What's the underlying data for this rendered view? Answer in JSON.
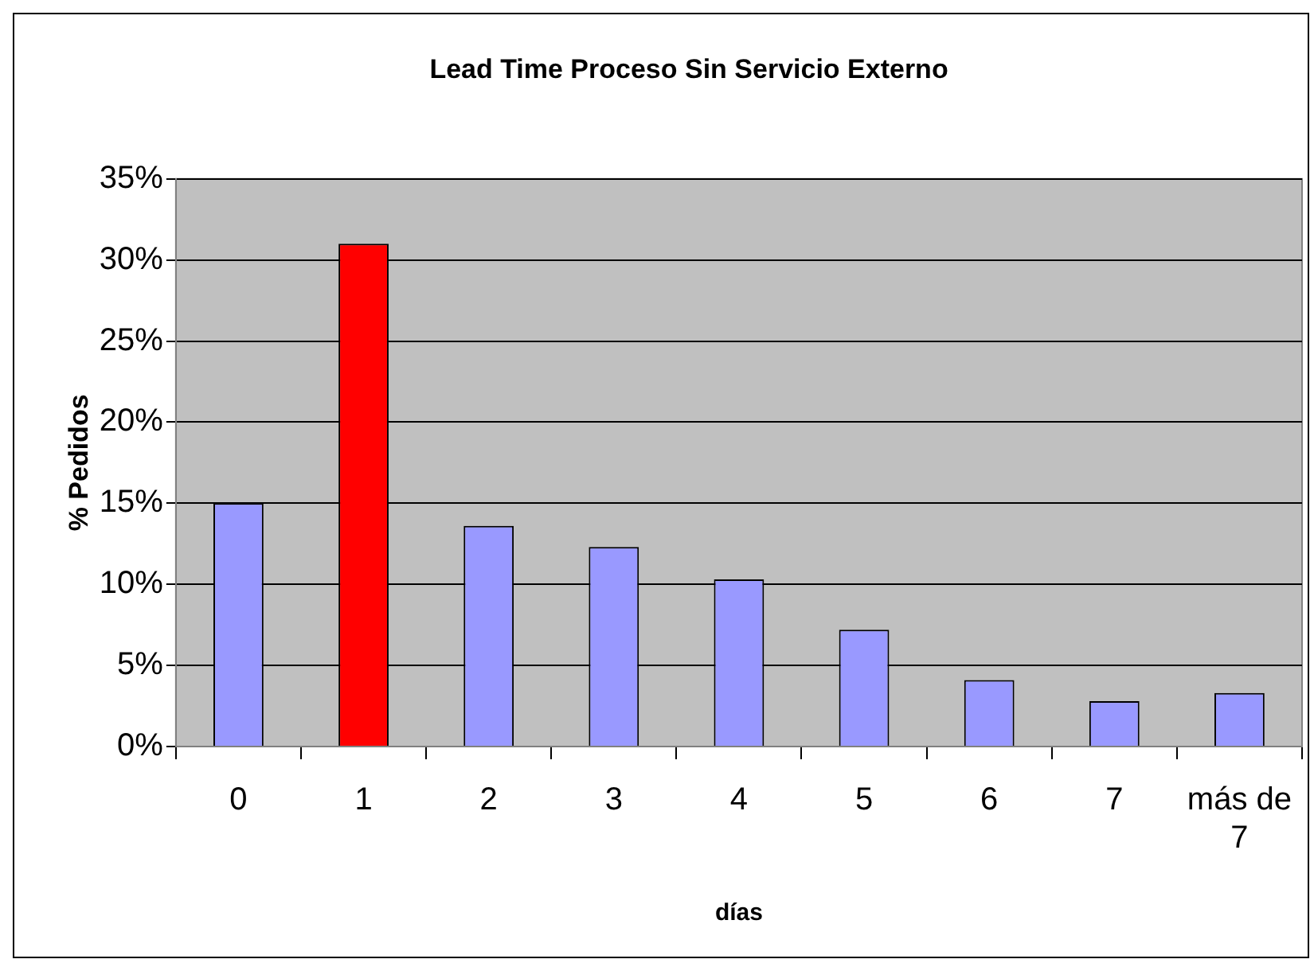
{
  "chart_data": {
    "type": "bar",
    "title": "Lead Time Proceso Sin Servicio Externo",
    "xlabel": "días",
    "ylabel": "% Pedidos",
    "categories": [
      "0",
      "1",
      "2",
      "3",
      "4",
      "5",
      "6",
      "7",
      "más de 7"
    ],
    "values": [
      15,
      31,
      13.6,
      12.3,
      10.3,
      7.2,
      4.1,
      2.8,
      3.3
    ],
    "colors": [
      "#9999ff",
      "#ff0000",
      "#9999ff",
      "#9999ff",
      "#9999ff",
      "#9999ff",
      "#9999ff",
      "#9999ff",
      "#9999ff"
    ],
    "ylim": [
      0,
      35
    ],
    "yticks": [
      {
        "value": 0,
        "label": "0%"
      },
      {
        "value": 5,
        "label": "5%"
      },
      {
        "value": 10,
        "label": "10%"
      },
      {
        "value": 15,
        "label": "15%"
      },
      {
        "value": 20,
        "label": "20%"
      },
      {
        "value": 25,
        "label": "25%"
      },
      {
        "value": 30,
        "label": "30%"
      },
      {
        "value": 35,
        "label": "35%"
      }
    ],
    "grid": "y",
    "legend": false
  }
}
